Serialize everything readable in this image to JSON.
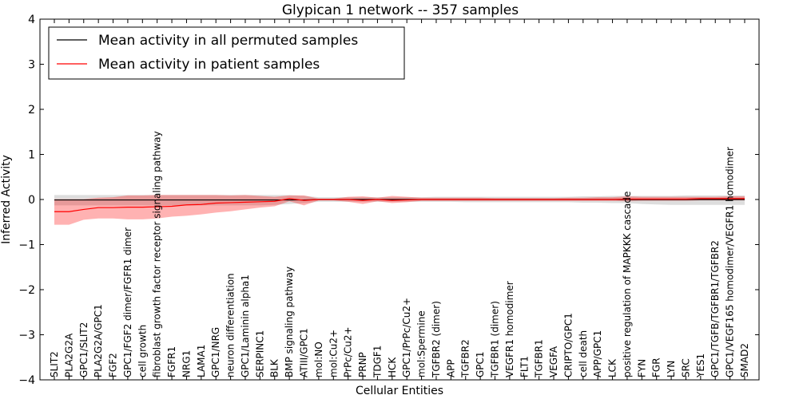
{
  "chart_data": {
    "type": "line",
    "title": "Glypican 1 network -- 357 samples",
    "xlabel": "Cellular Entities",
    "ylabel": "Inferred Activity",
    "ylim": [
      -4,
      4
    ],
    "yticks": [
      -4,
      -3,
      -2,
      -1,
      0,
      1,
      2,
      3,
      4
    ],
    "ytick_labels": [
      "−4",
      "−3",
      "−2",
      "−1",
      "0",
      "1",
      "2",
      "3",
      "4"
    ],
    "legend_position": "top-left",
    "categories": [
      "SLIT2",
      "PLA2G2A",
      "GPC1/SLIT2",
      "PLA2G2A/GPC1",
      "FGF2",
      "GPC1/FGF2 dimer/FGFR1 dimer",
      "cell growth",
      "fibroblast growth factor receptor signaling pathway",
      "FGFR1",
      "NRG1",
      "LAMA1",
      "GPC1/NRG",
      "neuron differentiation",
      "GPC1/Laminin alpha1",
      "SERPINC1",
      "BLK",
      "BMP signaling pathway",
      "ATIII/GPC1",
      "mol:NO",
      "mol:Cu2+",
      "PrPc/Cu2+",
      "PRNP",
      "TDGF1",
      "HCK",
      "GPC1/PrPc/Cu2+",
      "mol:Spermine",
      "TGFBR2 (dimer)",
      "APP",
      "TGFBR2",
      "GPC1",
      "TGFBR1 (dimer)",
      "VEGFR1 homodimer",
      "FLT1",
      "TGFBR1",
      "VEGFA",
      "CRIPTO/GPC1",
      "cell death",
      "APP/GPC1",
      "LCK",
      "positive regulation of MAPKKK cascade",
      "FYN",
      "FGR",
      "LYN",
      "SRC",
      "YES1",
      "GPC1/TGFB/TGFBR1/TGFBR2",
      "GPC1/VEGF165 homodimer/VEGFR1 homodimer",
      "SMAD2"
    ],
    "series": [
      {
        "name": "Mean activity in all permuted samples",
        "color": "#000000",
        "values": [
          -0.01,
          -0.01,
          -0.01,
          -0.01,
          -0.01,
          -0.01,
          -0.01,
          -0.01,
          -0.01,
          -0.01,
          -0.01,
          -0.01,
          -0.01,
          -0.01,
          -0.01,
          -0.01,
          -0.01,
          -0.01,
          0.0,
          0.0,
          0.0,
          0.0,
          0.0,
          0.0,
          0.0,
          0.0,
          0.0,
          0.0,
          0.0,
          0.0,
          0.0,
          0.0,
          0.0,
          0.0,
          0.0,
          0.0,
          0.0,
          0.0,
          0.0,
          0.0,
          0.0,
          0.0,
          0.0,
          0.0,
          0.0,
          0.0,
          0.0,
          0.0
        ],
        "band_lower": [
          -0.13,
          -0.13,
          -0.13,
          -0.13,
          -0.13,
          -0.13,
          -0.13,
          -0.13,
          -0.13,
          -0.13,
          -0.13,
          -0.13,
          -0.13,
          -0.13,
          -0.13,
          -0.12,
          -0.1,
          -0.08,
          -0.05,
          -0.05,
          -0.05,
          -0.05,
          -0.05,
          -0.05,
          -0.05,
          -0.05,
          -0.05,
          -0.05,
          -0.06,
          -0.06,
          -0.06,
          -0.06,
          -0.06,
          -0.06,
          -0.06,
          -0.06,
          -0.07,
          -0.07,
          -0.08,
          -0.08,
          -0.1,
          -0.11,
          -0.12,
          -0.12,
          -0.12,
          -0.12,
          -0.12,
          -0.12
        ],
        "band_upper": [
          0.1,
          0.1,
          0.1,
          0.1,
          0.1,
          0.1,
          0.1,
          0.1,
          0.1,
          0.1,
          0.1,
          0.1,
          0.1,
          0.1,
          0.1,
          0.1,
          0.1,
          0.08,
          0.05,
          0.05,
          0.05,
          0.05,
          0.05,
          0.05,
          0.05,
          0.05,
          0.06,
          0.06,
          0.06,
          0.06,
          0.06,
          0.06,
          0.06,
          0.06,
          0.06,
          0.06,
          0.07,
          0.07,
          0.08,
          0.08,
          0.08,
          0.08,
          0.08,
          0.09,
          0.09,
          0.09,
          0.09,
          0.09
        ],
        "band_color": "#bbbbbb"
      },
      {
        "name": "Mean activity in patient samples",
        "color": "#ff0000",
        "values": [
          -0.27,
          -0.27,
          -0.22,
          -0.18,
          -0.18,
          -0.17,
          -0.17,
          -0.16,
          -0.15,
          -0.12,
          -0.11,
          -0.08,
          -0.07,
          -0.06,
          -0.05,
          -0.04,
          0.02,
          -0.02,
          0.0,
          0.0,
          0.0,
          -0.02,
          0.0,
          -0.02,
          -0.01,
          0.0,
          0.0,
          0.0,
          0.0,
          0.0,
          0.0,
          0.0,
          0.0,
          0.0,
          0.0,
          0.0,
          0.0,
          0.0,
          0.0,
          0.01,
          0.01,
          0.01,
          0.01,
          0.01,
          0.02,
          0.02,
          0.02,
          0.02
        ],
        "band_lower": [
          -0.56,
          -0.56,
          -0.45,
          -0.42,
          -0.42,
          -0.44,
          -0.44,
          -0.42,
          -0.38,
          -0.36,
          -0.33,
          -0.29,
          -0.26,
          -0.22,
          -0.18,
          -0.15,
          -0.04,
          -0.13,
          -0.02,
          -0.02,
          -0.05,
          -0.1,
          -0.04,
          -0.08,
          -0.06,
          -0.03,
          -0.03,
          -0.03,
          -0.03,
          -0.03,
          -0.03,
          -0.03,
          -0.03,
          -0.03,
          -0.03,
          -0.03,
          -0.03,
          -0.03,
          -0.03,
          -0.04,
          -0.03,
          -0.03,
          -0.03,
          -0.03,
          -0.02,
          -0.02,
          -0.02,
          -0.02
        ],
        "band_upper": [
          0.01,
          0.01,
          0.01,
          0.04,
          0.05,
          0.09,
          0.09,
          0.1,
          0.1,
          0.1,
          0.1,
          0.1,
          0.09,
          0.1,
          0.08,
          0.06,
          0.09,
          0.09,
          0.02,
          0.02,
          0.06,
          0.07,
          0.04,
          0.08,
          0.06,
          0.04,
          0.04,
          0.04,
          0.04,
          0.04,
          0.03,
          0.03,
          0.03,
          0.03,
          0.03,
          0.04,
          0.04,
          0.05,
          0.05,
          0.07,
          0.06,
          0.06,
          0.06,
          0.06,
          0.06,
          0.06,
          0.07,
          0.07
        ],
        "band_color": "#ff0000"
      }
    ]
  }
}
